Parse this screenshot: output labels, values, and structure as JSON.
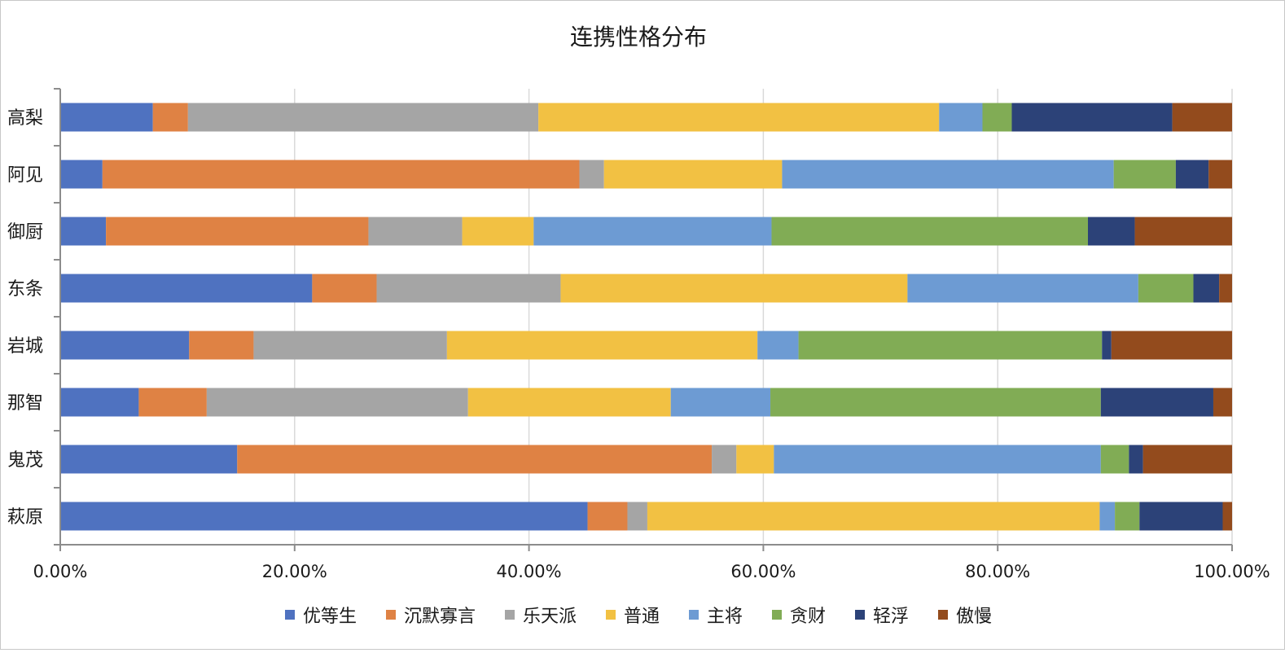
{
  "chart_data": {
    "type": "bar",
    "orientation": "horizontal",
    "stacked": "percent",
    "title": "连携性格分布",
    "categories": [
      "高梨",
      "阿见",
      "御厨",
      "东条",
      "岩城",
      "那智",
      "鬼茂",
      "萩原"
    ],
    "xlim": [
      0,
      100
    ],
    "x_ticks": [
      "0.00%",
      "20.00%",
      "40.00%",
      "60.00%",
      "80.00%",
      "100.00%"
    ],
    "grid": true,
    "legend_position": "bottom",
    "series": [
      {
        "name": "优等生",
        "color": "#4f72c0",
        "values": [
          7.9,
          3.6,
          3.9,
          21.5,
          11.0,
          6.7,
          15.1,
          45.0
        ]
      },
      {
        "name": "沉默寡言",
        "color": "#df8244",
        "values": [
          3.0,
          40.7,
          22.4,
          5.5,
          5.5,
          5.8,
          40.5,
          3.4
        ]
      },
      {
        "name": "乐天派",
        "color": "#a5a5a5",
        "values": [
          29.9,
          2.1,
          8.0,
          15.7,
          16.5,
          22.3,
          2.1,
          1.7
        ]
      },
      {
        "name": "普通",
        "color": "#f2c143",
        "values": [
          34.2,
          15.2,
          6.1,
          29.6,
          26.5,
          17.3,
          3.2,
          38.6
        ]
      },
      {
        "name": "主将",
        "color": "#6d9bd3",
        "values": [
          3.7,
          28.3,
          20.3,
          19.7,
          3.5,
          8.5,
          27.9,
          1.3
        ]
      },
      {
        "name": "贪财",
        "color": "#81ac55",
        "values": [
          2.5,
          5.3,
          27.0,
          4.7,
          25.9,
          28.2,
          2.4,
          2.1
        ]
      },
      {
        "name": "轻浮",
        "color": "#2c4278",
        "values": [
          13.7,
          2.8,
          4.0,
          2.2,
          0.8,
          9.6,
          1.2,
          7.1
        ]
      },
      {
        "name": "傲慢",
        "color": "#934b1d",
        "values": [
          5.1,
          2.0,
          8.3,
          1.1,
          10.3,
          1.6,
          7.6,
          0.8
        ]
      }
    ]
  }
}
